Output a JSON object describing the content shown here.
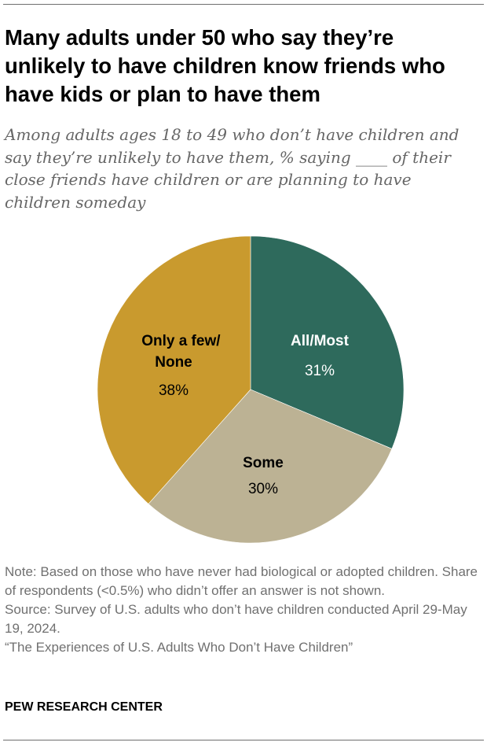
{
  "header": {
    "title": "Many adults under 50 who say they’re unlikely to have children know friends who have kids or plan to have them",
    "subtitle": "Among adults ages 18 to 49 who don’t have children and say they’re unlikely to have them, % saying ____ of their close friends have children or are planning to have children someday"
  },
  "chart_data": {
    "type": "pie",
    "title": "Many adults under 50 who say they’re unlikely to have children know friends who have kids or plan to have them",
    "slices": [
      {
        "label": "All/Most",
        "value": 31,
        "display": "31%",
        "color": "#2e6a5c",
        "text_color": "#ffffff"
      },
      {
        "label": "Some",
        "value": 30,
        "display": "30%",
        "color": "#bcb294",
        "text_color": "#000000"
      },
      {
        "label": "Only a few/ None",
        "value": 38,
        "display": "38%",
        "color": "#c99a2e",
        "text_color": "#000000"
      }
    ],
    "start": "12 o'clock",
    "direction": "clockwise"
  },
  "footer": {
    "note": "Note: Based on those who have never had biological or adopted children. Share of respondents (<0.5%) who didn’t offer an answer is not shown.",
    "source": "Source: Survey of U.S. adults who don’t have children conducted April 29-May 19, 2024.",
    "report": "“The Experiences of U.S. Adults Who Don’t Have Children”",
    "brand": "PEW RESEARCH CENTER"
  }
}
